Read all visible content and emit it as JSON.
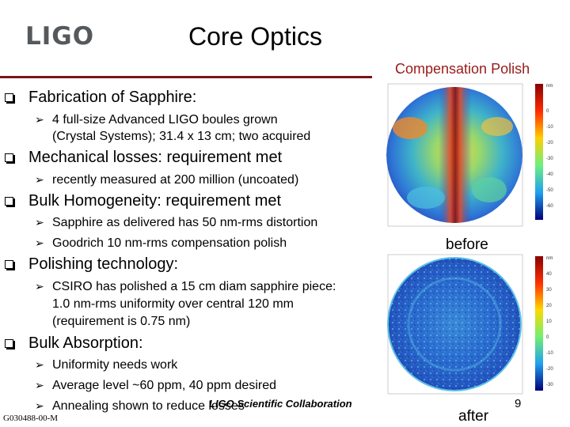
{
  "logo": "LIGO",
  "title": "Core Optics",
  "subtitle": "Compensation Polish",
  "bullets": [
    {
      "text": "Fabrication of Sapphire:",
      "subs": [
        "4 full-size Advanced LIGO boules grown",
        "(Crystal Systems); 31.4 x 13 cm; two acquired"
      ]
    },
    {
      "text": "Mechanical losses: requirement met",
      "subs": [
        "recently measured at 200 million (uncoated)"
      ]
    },
    {
      "text": "Bulk Homogeneity: requirement met",
      "subs": [
        "Sapphire as delivered has 50 nm-rms distortion",
        "Goodrich 10 nm-rms compensation polish"
      ]
    },
    {
      "text": "Polishing technology:",
      "subs": [
        "CSIRO has polished a 15 cm diam sapphire piece:",
        "1.0 nm-rms uniformity over central 120 mm",
        "(requirement is 0.75 nm)"
      ]
    },
    {
      "text": "Bulk Absorption:",
      "subs": [
        "Uniformity needs work",
        "Average level ~60 ppm, 40 ppm desired",
        "Annealing shown to reduce losses"
      ]
    }
  ],
  "footer": {
    "collaboration": "LIGO Scientific Collaboration",
    "doc_id": "G030488-00-M",
    "page_number": "9"
  },
  "figures": {
    "before_caption": "before",
    "after_caption": "after",
    "before_scale": [
      "nm",
      "0",
      "-10",
      "-20",
      "-30",
      "-40",
      "-50",
      "-60"
    ],
    "after_scale": [
      "nm",
      "40",
      "30",
      "20",
      "10",
      "0",
      "-10",
      "-20",
      "-30",
      "-40"
    ],
    "icons": {
      "bullet": "square-bullet-icon",
      "sub": "arrow-bullet-icon"
    }
  }
}
